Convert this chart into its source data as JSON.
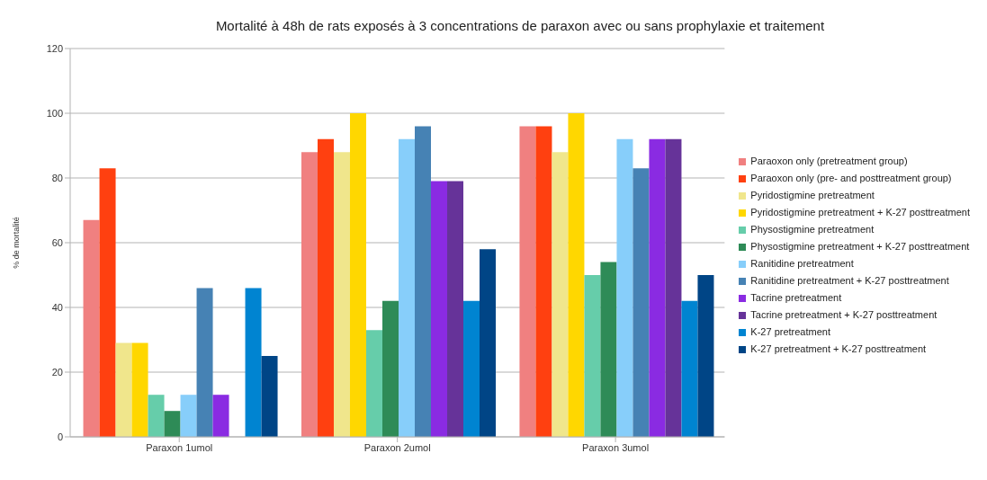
{
  "chart_data": {
    "type": "bar",
    "title": "Mortalité à 48h de rats exposés à 3 concentrations de paraxon avec ou sans prophylaxie et traitement",
    "ylabel": "% de mortalité",
    "categories": [
      "Paraxon 1umol",
      "Paraxon 2umol",
      "Paraxon 3umol"
    ],
    "series": [
      {
        "name": "Paraoxon only (pretreatment group)",
        "color": "#f08080",
        "values": [
          67,
          88,
          96
        ]
      },
      {
        "name": "Paraoxon only (pre- and posttreatment group)",
        "color": "#ff4010",
        "values": [
          83,
          92,
          96
        ]
      },
      {
        "name": "Pyridostigmine pretreatment",
        "color": "#f0e68c",
        "values": [
          29,
          88,
          88
        ]
      },
      {
        "name": "Pyridostigmine pretreatment + K-27 posttreatment",
        "color": "#ffd700",
        "values": [
          29,
          100,
          100
        ]
      },
      {
        "name": "Physostigmine pretreatment",
        "color": "#66cdaa",
        "values": [
          13,
          33,
          50
        ]
      },
      {
        "name": "Physostigmine pretreatment + K-27 posttreatment",
        "color": "#2e8b57",
        "values": [
          8,
          42,
          54
        ]
      },
      {
        "name": "Ranitidine pretreatment",
        "color": "#87cefa",
        "values": [
          13,
          92,
          92
        ]
      },
      {
        "name": "Ranitidine pretreatment + K-27 posttreatment",
        "color": "#4682b4",
        "values": [
          46,
          96,
          83
        ]
      },
      {
        "name": "Tacrine pretreatment",
        "color": "#8a2be2",
        "values": [
          13,
          79,
          92
        ]
      },
      {
        "name": "Tacrine pretreatment + K-27 posttreatment",
        "color": "#663399",
        "values": [
          0,
          79,
          92
        ]
      },
      {
        "name": "K-27 pretreatment",
        "color": "#0084d1",
        "values": [
          46,
          42,
          42
        ]
      },
      {
        "name": "K-27 pretreatment + K-27 posttreatment",
        "color": "#004586",
        "values": [
          25,
          58,
          50
        ]
      }
    ],
    "ylim": [
      0,
      120
    ],
    "yticks": [
      0,
      20,
      40,
      60,
      80,
      100,
      120
    ],
    "grid": "y",
    "legend": "right"
  }
}
